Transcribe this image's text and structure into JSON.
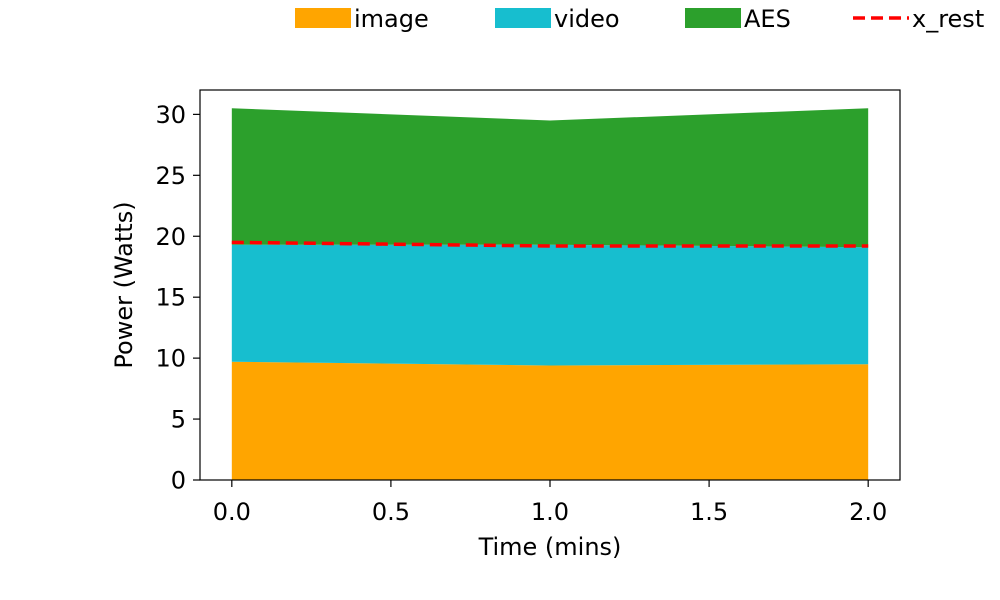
{
  "chart_data": {
    "type": "area",
    "stacked": true,
    "x": [
      0.0,
      1.0,
      2.0
    ],
    "xlabel": "Time (mins)",
    "ylabel": "Power (Watts)",
    "xlim": [
      -0.1,
      2.1
    ],
    "ylim": [
      0,
      32
    ],
    "xticks": [
      0.0,
      0.5,
      1.0,
      1.5,
      2.0
    ],
    "xtick_labels": [
      "0.0",
      "0.5",
      "1.0",
      "1.5",
      "2.0"
    ],
    "yticks": [
      0,
      5,
      10,
      15,
      20,
      25,
      30
    ],
    "ytick_labels": [
      "0",
      "5",
      "10",
      "15",
      "20",
      "25",
      "30"
    ],
    "grid": false,
    "legend_position": "top",
    "series": [
      {
        "name": "image",
        "values": [
          9.7,
          9.4,
          9.5
        ],
        "color": "#ffa500"
      },
      {
        "name": "video",
        "values": [
          9.6,
          9.9,
          9.6
        ],
        "color": "#17becf"
      },
      {
        "name": "AES",
        "values": [
          11.2,
          10.2,
          11.4
        ],
        "color": "#2ca02c"
      }
    ],
    "lines": [
      {
        "name": "x_rest",
        "values": [
          19.5,
          19.2,
          19.2
        ],
        "color": "#ff0000",
        "style": "dashed"
      }
    ]
  }
}
